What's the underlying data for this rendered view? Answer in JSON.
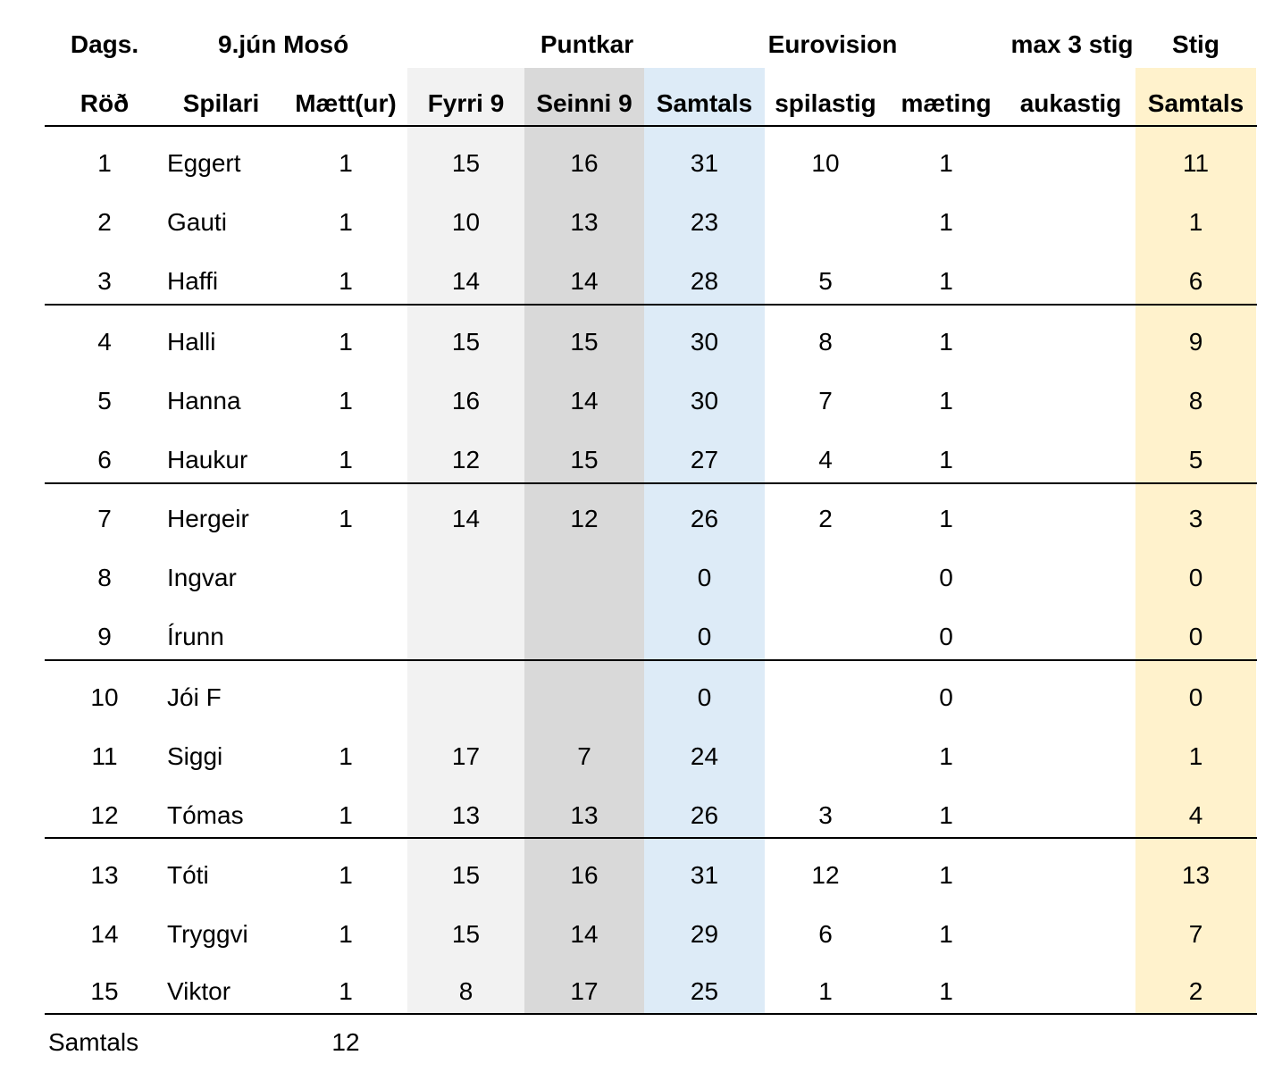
{
  "header_top": {
    "date_label": "Dags.",
    "date_value": "9.jún Mosó",
    "points_group": "Puntkar",
    "euro_group": "Eurovision",
    "max_group": "max 3 stig",
    "stig_group": "Stig"
  },
  "columns": {
    "rank": "Röð",
    "player": "Spilari",
    "attended": "Mætt(ur)",
    "front9": "Fyrri 9",
    "back9": "Seinni 9",
    "total": "Samtals",
    "play_points": "spilastig",
    "attendance": "mæting",
    "bonus": "aukastig",
    "stig_total": "Samtals"
  },
  "rows": [
    {
      "rank": "1",
      "player": "Eggert",
      "attended": "1",
      "front9": "15",
      "back9": "16",
      "total": "31",
      "play_points": "10",
      "attendance": "1",
      "bonus": "",
      "stig_total": "11"
    },
    {
      "rank": "2",
      "player": "Gauti",
      "attended": "1",
      "front9": "10",
      "back9": "13",
      "total": "23",
      "play_points": "",
      "attendance": "1",
      "bonus": "",
      "stig_total": "1"
    },
    {
      "rank": "3",
      "player": "Haffi",
      "attended": "1",
      "front9": "14",
      "back9": "14",
      "total": "28",
      "play_points": "5",
      "attendance": "1",
      "bonus": "",
      "stig_total": "6"
    },
    {
      "rank": "4",
      "player": "Halli",
      "attended": "1",
      "front9": "15",
      "back9": "15",
      "total": "30",
      "play_points": "8",
      "attendance": "1",
      "bonus": "",
      "stig_total": "9"
    },
    {
      "rank": "5",
      "player": "Hanna",
      "attended": "1",
      "front9": "16",
      "back9": "14",
      "total": "30",
      "play_points": "7",
      "attendance": "1",
      "bonus": "",
      "stig_total": "8"
    },
    {
      "rank": "6",
      "player": "Haukur",
      "attended": "1",
      "front9": "12",
      "back9": "15",
      "total": "27",
      "play_points": "4",
      "attendance": "1",
      "bonus": "",
      "stig_total": "5"
    },
    {
      "rank": "7",
      "player": "Hergeir",
      "attended": "1",
      "front9": "14",
      "back9": "12",
      "total": "26",
      "play_points": "2",
      "attendance": "1",
      "bonus": "",
      "stig_total": "3"
    },
    {
      "rank": "8",
      "player": "Ingvar",
      "attended": "",
      "front9": "",
      "back9": "",
      "total": "0",
      "play_points": "",
      "attendance": "0",
      "bonus": "",
      "stig_total": "0"
    },
    {
      "rank": "9",
      "player": "Írunn",
      "attended": "",
      "front9": "",
      "back9": "",
      "total": "0",
      "play_points": "",
      "attendance": "0",
      "bonus": "",
      "stig_total": "0"
    },
    {
      "rank": "10",
      "player": "Jói F",
      "attended": "",
      "front9": "",
      "back9": "",
      "total": "0",
      "play_points": "",
      "attendance": "0",
      "bonus": "",
      "stig_total": "0"
    },
    {
      "rank": "11",
      "player": "Siggi",
      "attended": "1",
      "front9": "17",
      "back9": "7",
      "total": "24",
      "play_points": "",
      "attendance": "1",
      "bonus": "",
      "stig_total": "1"
    },
    {
      "rank": "12",
      "player": "Tómas",
      "attended": "1",
      "front9": "13",
      "back9": "13",
      "total": "26",
      "play_points": "3",
      "attendance": "1",
      "bonus": "",
      "stig_total": "4"
    },
    {
      "rank": "13",
      "player": "Tóti",
      "attended": "1",
      "front9": "15",
      "back9": "16",
      "total": "31",
      "play_points": "12",
      "attendance": "1",
      "bonus": "",
      "stig_total": "13"
    },
    {
      "rank": "14",
      "player": "Tryggvi",
      "attended": "1",
      "front9": "15",
      "back9": "14",
      "total": "29",
      "play_points": "6",
      "attendance": "1",
      "bonus": "",
      "stig_total": "7"
    },
    {
      "rank": "15",
      "player": "Viktor",
      "attended": "1",
      "front9": "8",
      "back9": "17",
      "total": "25",
      "play_points": "1",
      "attendance": "1",
      "bonus": "",
      "stig_total": "2"
    }
  ],
  "footer": {
    "label": "Samtals",
    "attended_total": "12"
  }
}
